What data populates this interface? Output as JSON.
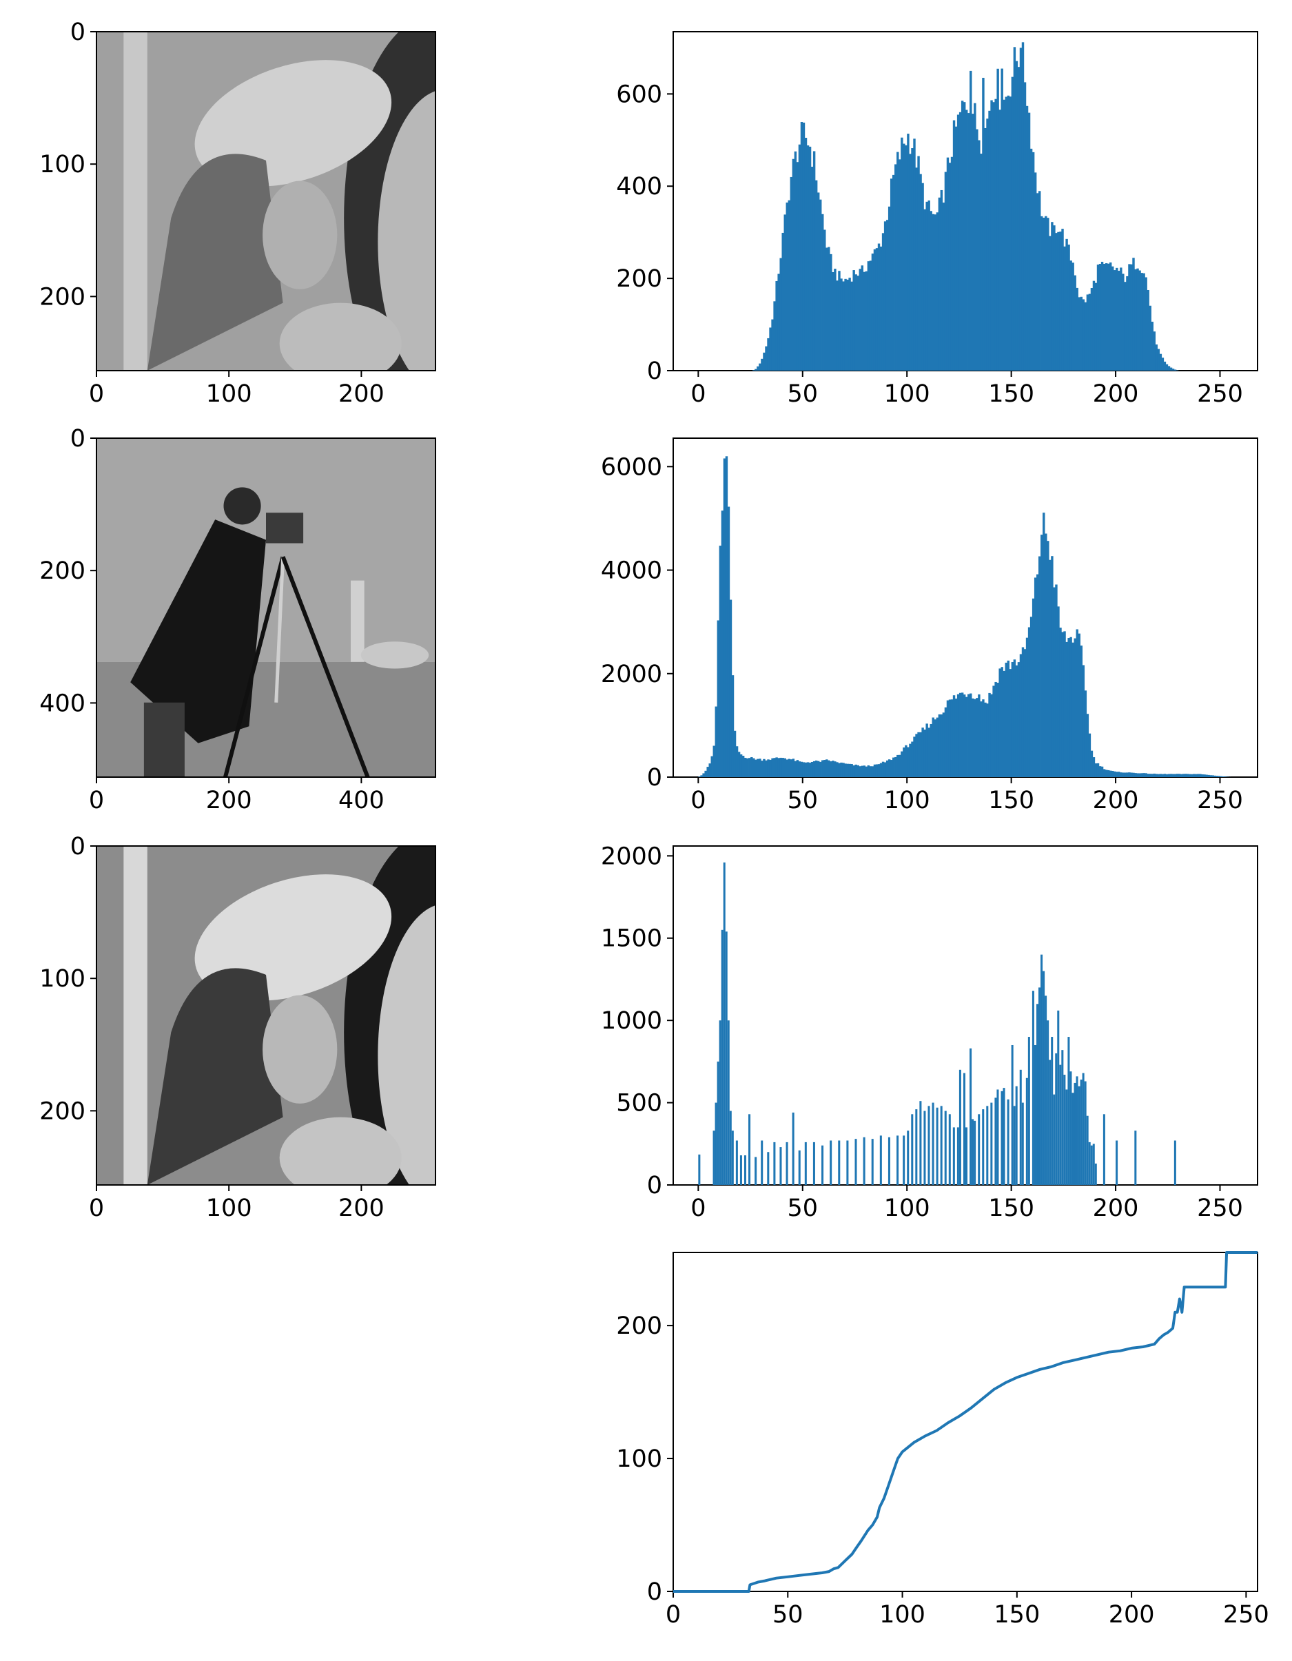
{
  "colors": {
    "bar": "#1f77b4",
    "axis": "#000000",
    "background": "#ffffff"
  },
  "images": [
    {
      "name": "lena-original",
      "grid": [
        0,
        1
      ],
      "xticks": [
        0,
        100,
        200
      ],
      "yticks": [
        0,
        100,
        200
      ],
      "xlim": [
        0,
        256
      ],
      "ylim": [
        0,
        256
      ]
    },
    {
      "name": "cameraman",
      "grid": [
        1,
        1
      ],
      "xticks": [
        0,
        200,
        400
      ],
      "yticks": [
        0,
        200,
        400
      ],
      "xlim": [
        0,
        512
      ],
      "ylim": [
        0,
        512
      ]
    },
    {
      "name": "lena-matched",
      "grid": [
        2,
        1
      ],
      "xticks": [
        0,
        100,
        200
      ],
      "yticks": [
        0,
        100,
        200
      ],
      "xlim": [
        0,
        256
      ],
      "ylim": [
        0,
        256
      ]
    }
  ],
  "chart_data": [
    {
      "type": "bar",
      "name": "hist-lena-original",
      "xlim": [
        -12,
        268
      ],
      "ylim": [
        0,
        735
      ],
      "xticks": [
        0,
        50,
        100,
        150,
        200,
        250
      ],
      "yticks": [
        0,
        200,
        400,
        600
      ],
      "grid": false,
      "bins": [
        0,
        256
      ],
      "envelope": [
        [
          0,
          0
        ],
        [
          26,
          0
        ],
        [
          28,
          5
        ],
        [
          30,
          20
        ],
        [
          32,
          45
        ],
        [
          34,
          80
        ],
        [
          36,
          130
        ],
        [
          38,
          200
        ],
        [
          40,
          270
        ],
        [
          42,
          340
        ],
        [
          44,
          410
        ],
        [
          46,
          450
        ],
        [
          48,
          490
        ],
        [
          50,
          510
        ],
        [
          52,
          505
        ],
        [
          54,
          480
        ],
        [
          56,
          440
        ],
        [
          58,
          380
        ],
        [
          60,
          320
        ],
        [
          62,
          260
        ],
        [
          64,
          230
        ],
        [
          66,
          210
        ],
        [
          68,
          200
        ],
        [
          70,
          195
        ],
        [
          72,
          200
        ],
        [
          74,
          210
        ],
        [
          76,
          215
        ],
        [
          78,
          210
        ],
        [
          80,
          225
        ],
        [
          82,
          240
        ],
        [
          84,
          250
        ],
        [
          86,
          265
        ],
        [
          88,
          290
        ],
        [
          90,
          330
        ],
        [
          92,
          380
        ],
        [
          94,
          430
        ],
        [
          96,
          460
        ],
        [
          98,
          490
        ],
        [
          100,
          510
        ],
        [
          102,
          500
        ],
        [
          104,
          470
        ],
        [
          106,
          430
        ],
        [
          108,
          380
        ],
        [
          110,
          350
        ],
        [
          112,
          340
        ],
        [
          114,
          330
        ],
        [
          116,
          360
        ],
        [
          118,
          400
        ],
        [
          120,
          450
        ],
        [
          122,
          500
        ],
        [
          124,
          530
        ],
        [
          126,
          560
        ],
        [
          128,
          580
        ],
        [
          130,
          585
        ],
        [
          132,
          560
        ],
        [
          134,
          520
        ],
        [
          136,
          500
        ],
        [
          138,
          530
        ],
        [
          140,
          590
        ],
        [
          142,
          630
        ],
        [
          144,
          610
        ],
        [
          146,
          580
        ],
        [
          148,
          600
        ],
        [
          150,
          640
        ],
        [
          152,
          670
        ],
        [
          154,
          690
        ],
        [
          156,
          660
        ],
        [
          158,
          580
        ],
        [
          160,
          490
        ],
        [
          162,
          420
        ],
        [
          164,
          360
        ],
        [
          166,
          320
        ],
        [
          168,
          310
        ],
        [
          170,
          300
        ],
        [
          172,
          320
        ],
        [
          174,
          300
        ],
        [
          176,
          280
        ],
        [
          178,
          250
        ],
        [
          180,
          230
        ],
        [
          182,
          170
        ],
        [
          184,
          150
        ],
        [
          186,
          155
        ],
        [
          188,
          170
        ],
        [
          190,
          195
        ],
        [
          192,
          230
        ],
        [
          194,
          220
        ],
        [
          196,
          225
        ],
        [
          198,
          225
        ],
        [
          200,
          220
        ],
        [
          202,
          215
        ],
        [
          204,
          200
        ],
        [
          206,
          215
        ],
        [
          208,
          230
        ],
        [
          210,
          235
        ],
        [
          212,
          230
        ],
        [
          214,
          215
        ],
        [
          216,
          160
        ],
        [
          218,
          90
        ],
        [
          220,
          50
        ],
        [
          222,
          30
        ],
        [
          224,
          15
        ],
        [
          226,
          8
        ],
        [
          228,
          3
        ],
        [
          230,
          0
        ],
        [
          255,
          0
        ]
      ],
      "spikes": [
        [
          130,
          650
        ],
        [
          136,
          635
        ],
        [
          145,
          655
        ],
        [
          154,
          700
        ]
      ]
    },
    {
      "type": "bar",
      "name": "hist-cameraman",
      "xlim": [
        -12,
        268
      ],
      "ylim": [
        0,
        6550
      ],
      "xticks": [
        0,
        50,
        100,
        150,
        200,
        250
      ],
      "yticks": [
        0,
        2000,
        4000,
        6000
      ],
      "grid": false,
      "bins": [
        0,
        256
      ],
      "envelope": [
        [
          0,
          0
        ],
        [
          2,
          50
        ],
        [
          4,
          150
        ],
        [
          6,
          300
        ],
        [
          8,
          700
        ],
        [
          9,
          2000
        ],
        [
          10,
          4000
        ],
        [
          11,
          5100
        ],
        [
          12,
          5600
        ],
        [
          13,
          6200
        ],
        [
          14,
          5900
        ],
        [
          15,
          4200
        ],
        [
          16,
          2500
        ],
        [
          17,
          1200
        ],
        [
          18,
          600
        ],
        [
          20,
          450
        ],
        [
          22,
          400
        ],
        [
          25,
          370
        ],
        [
          30,
          340
        ],
        [
          35,
          350
        ],
        [
          40,
          380
        ],
        [
          45,
          340
        ],
        [
          50,
          280
        ],
        [
          55,
          300
        ],
        [
          60,
          310
        ],
        [
          62,
          330
        ],
        [
          65,
          300
        ],
        [
          70,
          260
        ],
        [
          75,
          230
        ],
        [
          80,
          210
        ],
        [
          85,
          230
        ],
        [
          90,
          300
        ],
        [
          95,
          400
        ],
        [
          100,
          600
        ],
        [
          105,
          800
        ],
        [
          110,
          1000
        ],
        [
          115,
          1200
        ],
        [
          120,
          1450
        ],
        [
          125,
          1600
        ],
        [
          130,
          1650
        ],
        [
          135,
          1550
        ],
        [
          138,
          1450
        ],
        [
          140,
          1600
        ],
        [
          145,
          2100
        ],
        [
          150,
          2200
        ],
        [
          155,
          2300
        ],
        [
          158,
          2700
        ],
        [
          160,
          3200
        ],
        [
          162,
          3800
        ],
        [
          164,
          4600
        ],
        [
          165,
          4900
        ],
        [
          167,
          4700
        ],
        [
          169,
          4300
        ],
        [
          171,
          3700
        ],
        [
          173,
          3000
        ],
        [
          175,
          2700
        ],
        [
          178,
          2650
        ],
        [
          180,
          2750
        ],
        [
          182,
          2700
        ],
        [
          184,
          2300
        ],
        [
          186,
          1500
        ],
        [
          188,
          600
        ],
        [
          190,
          300
        ],
        [
          195,
          150
        ],
        [
          200,
          100
        ],
        [
          210,
          80
        ],
        [
          220,
          60
        ],
        [
          230,
          60
        ],
        [
          240,
          60
        ],
        [
          245,
          40
        ],
        [
          250,
          20
        ],
        [
          255,
          0
        ]
      ],
      "spikes": [
        [
          11,
          5150
        ],
        [
          13,
          6200
        ]
      ]
    },
    {
      "type": "bar",
      "name": "hist-lena-matched",
      "xlim": [
        -12,
        268
      ],
      "ylim": [
        0,
        2060
      ],
      "xticks": [
        0,
        50,
        100,
        150,
        200,
        250
      ],
      "yticks": [
        0,
        500,
        1000,
        1500,
        2000
      ],
      "grid": false,
      "bins": [
        0,
        256
      ],
      "values": [
        [
          0,
          185
        ],
        [
          7,
          330
        ],
        [
          8,
          500
        ],
        [
          9,
          750
        ],
        [
          10,
          1000
        ],
        [
          11,
          1550
        ],
        [
          12,
          1960
        ],
        [
          13,
          1540
        ],
        [
          14,
          1000
        ],
        [
          15,
          450
        ],
        [
          16,
          330
        ],
        [
          18,
          270
        ],
        [
          20,
          180
        ],
        [
          22,
          180
        ],
        [
          24,
          430
        ],
        [
          27,
          170
        ],
        [
          30,
          270
        ],
        [
          33,
          200
        ],
        [
          36,
          260
        ],
        [
          39,
          230
        ],
        [
          42,
          260
        ],
        [
          45,
          440
        ],
        [
          48,
          210
        ],
        [
          51,
          260
        ],
        [
          55,
          260
        ],
        [
          59,
          240
        ],
        [
          63,
          270
        ],
        [
          67,
          270
        ],
        [
          71,
          270
        ],
        [
          75,
          280
        ],
        [
          79,
          290
        ],
        [
          83,
          280
        ],
        [
          87,
          300
        ],
        [
          91,
          290
        ],
        [
          95,
          300
        ],
        [
          98,
          300
        ],
        [
          100,
          330
        ],
        [
          102,
          430
        ],
        [
          104,
          460
        ],
        [
          106,
          510
        ],
        [
          108,
          450
        ],
        [
          110,
          480
        ],
        [
          112,
          500
        ],
        [
          114,
          470
        ],
        [
          116,
          480
        ],
        [
          118,
          450
        ],
        [
          120,
          430
        ],
        [
          122,
          350
        ],
        [
          124,
          350
        ],
        [
          125,
          700
        ],
        [
          127,
          680
        ],
        [
          128,
          350
        ],
        [
          130,
          830
        ],
        [
          131,
          400
        ],
        [
          132,
          390
        ],
        [
          134,
          430
        ],
        [
          136,
          460
        ],
        [
          138,
          480
        ],
        [
          140,
          500
        ],
        [
          142,
          530
        ],
        [
          143,
          580
        ],
        [
          145,
          570
        ],
        [
          146,
          590
        ],
        [
          148,
          520
        ],
        [
          150,
          850
        ],
        [
          151,
          480
        ],
        [
          152,
          600
        ],
        [
          154,
          700
        ],
        [
          155,
          500
        ],
        [
          157,
          650
        ],
        [
          158,
          900
        ],
        [
          160,
          1180
        ],
        [
          161,
          850
        ],
        [
          162,
          1100
        ],
        [
          163,
          1200
        ],
        [
          164,
          1400
        ],
        [
          165,
          1300
        ],
        [
          166,
          1150
        ],
        [
          167,
          1000
        ],
        [
          168,
          760
        ],
        [
          169,
          900
        ],
        [
          170,
          550
        ],
        [
          171,
          800
        ],
        [
          172,
          1060
        ],
        [
          173,
          730
        ],
        [
          174,
          820
        ],
        [
          175,
          670
        ],
        [
          176,
          580
        ],
        [
          177,
          900
        ],
        [
          178,
          690
        ],
        [
          179,
          560
        ],
        [
          180,
          620
        ],
        [
          181,
          660
        ],
        [
          182,
          600
        ],
        [
          183,
          640
        ],
        [
          184,
          680
        ],
        [
          185,
          630
        ],
        [
          186,
          420
        ],
        [
          187,
          260
        ],
        [
          188,
          240
        ],
        [
          189,
          250
        ],
        [
          190,
          130
        ],
        [
          194,
          430
        ],
        [
          200,
          270
        ],
        [
          209,
          330
        ],
        [
          228,
          270
        ]
      ]
    },
    {
      "type": "line",
      "name": "mapping-curve",
      "xlim": [
        0,
        255
      ],
      "ylim": [
        0,
        255
      ],
      "xticks": [
        0,
        50,
        100,
        150,
        200,
        250
      ],
      "yticks": [
        0,
        100,
        200
      ],
      "grid": false,
      "x": [
        0,
        33,
        33.5,
        37,
        40,
        45,
        50,
        55,
        60,
        65,
        68,
        70,
        72,
        75,
        78,
        80,
        82,
        85,
        87,
        89,
        90,
        92,
        94,
        96,
        98,
        100,
        105,
        110,
        115,
        120,
        125,
        130,
        135,
        140,
        145,
        150,
        155,
        160,
        165,
        170,
        175,
        180,
        185,
        190,
        195,
        200,
        205,
        210,
        212,
        214,
        216,
        218,
        219,
        220,
        221,
        222,
        223,
        241,
        241.5,
        255
      ],
      "y": [
        0,
        0,
        5,
        7,
        8,
        10,
        11,
        12,
        13,
        14,
        15,
        17,
        18,
        23,
        28,
        33,
        38,
        46,
        50,
        56,
        63,
        70,
        80,
        90,
        100,
        105,
        112,
        117,
        121,
        127,
        132,
        138,
        145,
        152,
        157,
        161,
        164,
        167,
        169,
        172,
        174,
        176,
        178,
        180,
        181,
        183,
        184,
        186,
        190,
        193,
        195,
        198,
        210,
        210,
        220,
        210,
        229,
        229,
        255,
        255
      ]
    }
  ]
}
